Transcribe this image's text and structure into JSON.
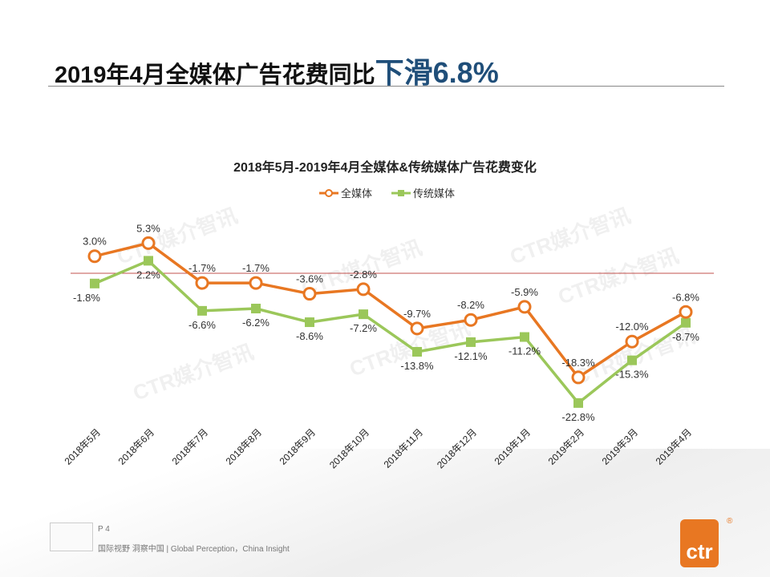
{
  "header": {
    "title_main": "2019年4月全媒体广告花费同比",
    "title_highlight": "下滑6.8%"
  },
  "footer": {
    "page": "P 4",
    "tagline": "国际视野 洞察中国 | Global Perception，China Insight",
    "logo": "ctr",
    "registered": "®"
  },
  "watermark": "CTR媒介智讯",
  "colors": {
    "all_media": "#e87722",
    "traditional": "#9bc75a",
    "zero_line": "#c0504d",
    "title_highlight": "#1f4e79"
  },
  "chart_data": {
    "type": "line",
    "title": "2018年5月-2019年4月全媒体&传统媒体广告花费变化",
    "legend_position": "top",
    "grid": false,
    "categories": [
      "2018年5月",
      "2018年6月",
      "2018年7月",
      "2018年8月",
      "2018年9月",
      "2018年10月",
      "2018年11月",
      "2018年12月",
      "2019年1月",
      "2019年2月",
      "2019年3月",
      "2019年4月"
    ],
    "series": [
      {
        "name": "全媒体",
        "marker": "circle",
        "values": [
          3.0,
          5.3,
          -1.7,
          -1.7,
          -3.6,
          -2.8,
          -9.7,
          -8.2,
          -5.9,
          -18.3,
          -12.0,
          -6.8
        ],
        "labels": [
          "3.0%",
          "5.3%",
          "-1.7%",
          "-1.7%",
          "-3.6%",
          "-2.8%",
          "-9.7%",
          "-8.2%",
          "-5.9%",
          "-18.3%",
          "-12.0%",
          "-6.8%"
        ]
      },
      {
        "name": "传统媒体",
        "marker": "square",
        "values": [
          -1.8,
          2.2,
          -6.6,
          -6.2,
          -8.6,
          -7.2,
          -13.8,
          -12.1,
          -11.2,
          -22.8,
          -15.3,
          -8.7
        ],
        "labels": [
          "-1.8%",
          "2.2%",
          "-6.6%",
          "-6.2%",
          "-8.6%",
          "-7.2%",
          "-13.8%",
          "-12.1%",
          "-11.2%",
          "-22.8%",
          "-15.3%",
          "-8.7%"
        ]
      }
    ]
  }
}
